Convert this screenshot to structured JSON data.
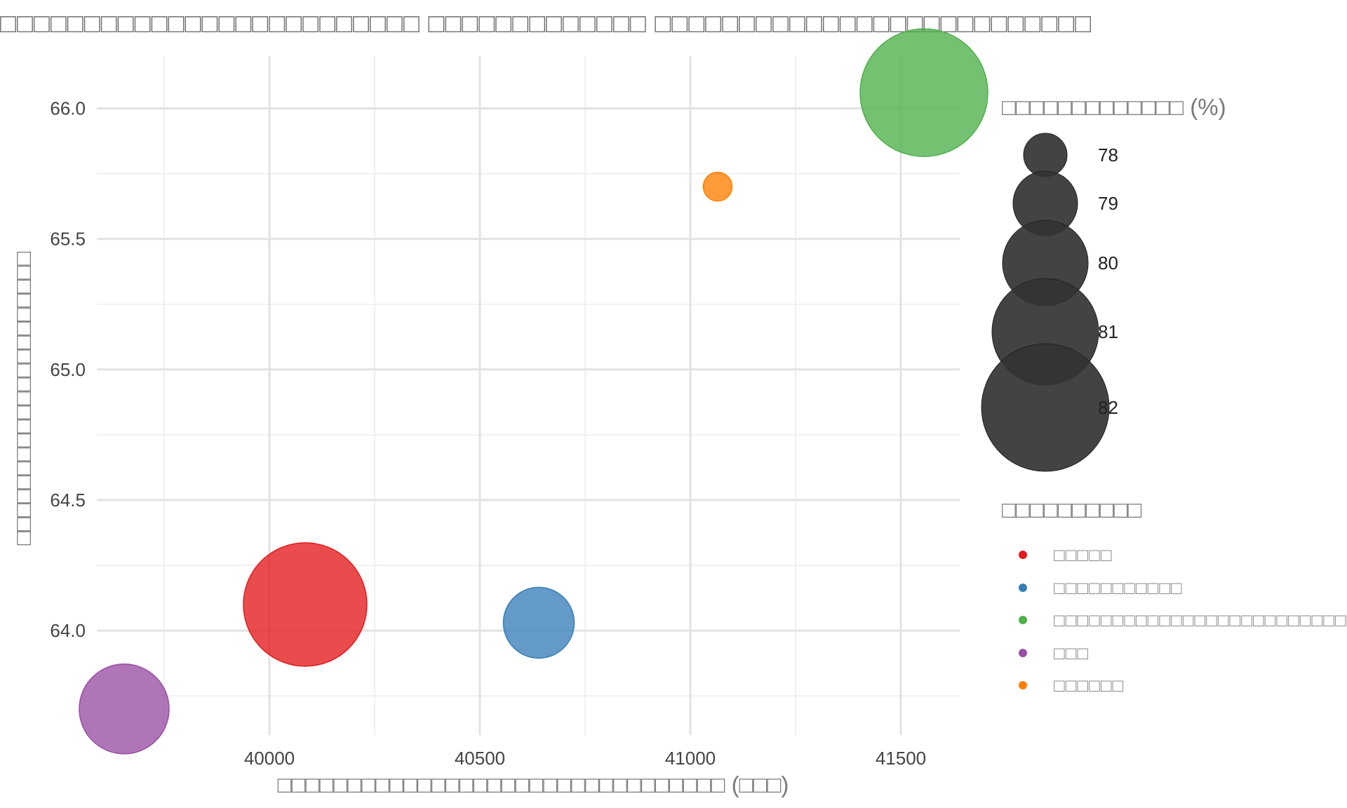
{
  "chart_data": {
    "type": "scatter",
    "title": "□□□□□□□□□□□□□□□□□□□□□□□□□ □□□□□□□□□□□□□ □□□□□□□□□□□□□□□□□□□□□□□□□□",
    "xlabel": "□□□□□□□□□□□□□□□□□□□□□□□□□□□□□□□□ (□□□)",
    "ylabel": "□□□□□□□□□□□□□□□□□□□□□",
    "xlim": [
      39590,
      41640
    ],
    "ylim": [
      63.6,
      66.2
    ],
    "x_ticks": [
      40000,
      40500,
      41000,
      41500
    ],
    "x_tick_labels": [
      "40000",
      "40500",
      "41000",
      "41500"
    ],
    "y_ticks": [
      64.0,
      64.5,
      65.0,
      65.5,
      66.0
    ],
    "y_tick_labels": [
      "64.0",
      "64.5",
      "65.0",
      "65.5",
      "66.0"
    ],
    "grid": true,
    "size_legend": {
      "title": "□□□□□□□□□□□□□ (%)",
      "values": [
        78,
        79,
        80,
        81,
        82
      ],
      "labels": [
        "78",
        "79",
        "80",
        "81",
        "82"
      ],
      "color": "#333333"
    },
    "color_legend": {
      "title": "□□□□□□□□□□"
    },
    "series": [
      {
        "name": "□□□□□",
        "x": 40085,
        "y": 64.1,
        "size": 81.8,
        "color": "#e41a1c"
      },
      {
        "name": "□□□□□□□□□□□",
        "x": 40640,
        "y": 64.03,
        "size": 79.3,
        "color": "#377eb8"
      },
      {
        "name": "□□□□□□□□□□□□□□□□□□□□□□□□□□□",
        "x": 41555,
        "y": 66.06,
        "size": 82.0,
        "color": "#4daf4a"
      },
      {
        "name": "□□□",
        "x": 39655,
        "y": 63.7,
        "size": 80.2,
        "color": "#984ea3"
      },
      {
        "name": "□□□□□□",
        "x": 41065,
        "y": 65.7,
        "size": 77.3,
        "color": "#ff7f00"
      }
    ]
  }
}
